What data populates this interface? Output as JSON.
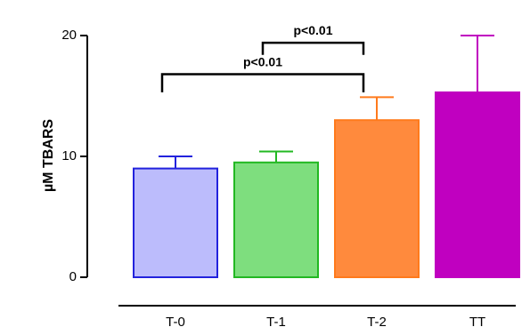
{
  "chart_data": {
    "type": "bar",
    "title": "",
    "xlabel": "",
    "ylabel": "µM TBARS",
    "ylim": [
      0,
      20
    ],
    "yticks": [
      0,
      10,
      20
    ],
    "grid": false,
    "categories": [
      "T-0",
      "T-1",
      "T-2",
      "TT"
    ],
    "values": [
      9.0,
      9.5,
      13.0,
      15.3
    ],
    "errors": [
      1.0,
      0.9,
      1.9,
      4.7
    ],
    "colors": [
      {
        "fill": "#bcbcfc",
        "stroke": "#2222dd"
      },
      {
        "fill": "#7ede7e",
        "stroke": "#22b822"
      },
      {
        "fill": "#ff8a3d",
        "stroke": "#ff7a1c"
      },
      {
        "fill": "#c000c0",
        "stroke": "#c000c0"
      }
    ],
    "annotations": [
      {
        "label": "p<0.01",
        "from": "T-1",
        "to": "T-2",
        "y": 19.4,
        "arm": 1.0
      },
      {
        "label": "p<0.01",
        "from": "T-0",
        "to": "T-2",
        "y": 16.8,
        "arm": 1.5
      }
    ]
  }
}
